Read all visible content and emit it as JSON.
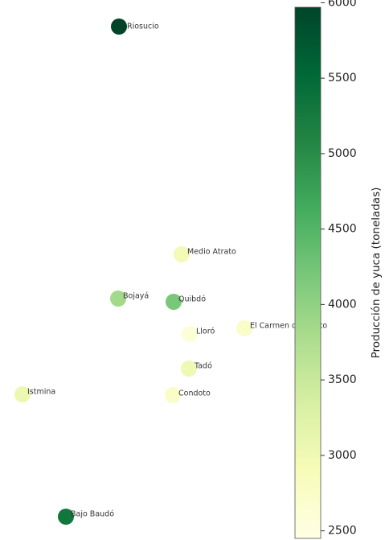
{
  "chart_data": {
    "type": "scatter",
    "title": "",
    "xlabel": "",
    "ylabel": "",
    "points": [
      {
        "label": "Riosucio",
        "value": 6000
      },
      {
        "label": "Medio Atrato",
        "value": 2950
      },
      {
        "label": "Bojayá",
        "value": 3850
      },
      {
        "label": "Quibdó",
        "value": 4200
      },
      {
        "label": "Lloró",
        "value": 2600
      },
      {
        "label": "El Carmen de Atrato",
        "value": 2750
      },
      {
        "label": "Tadó",
        "value": 3000
      },
      {
        "label": "Istmina",
        "value": 3050
      },
      {
        "label": "Condoto",
        "value": 2750
      },
      {
        "label": "Bajo Baudó",
        "value": 5300
      }
    ],
    "colorbar": {
      "label": "Producción de yuca (toneladas)",
      "ticks": [
        2500,
        3000,
        3500,
        4000,
        4500,
        5000,
        5500,
        6000
      ],
      "range": [
        2450,
        5970
      ],
      "colormap": [
        "#ffffe5",
        "#f7fcb9",
        "#d9f0a3",
        "#addd8e",
        "#78c679",
        "#41ab5d",
        "#238443",
        "#006837",
        "#004529"
      ]
    }
  }
}
